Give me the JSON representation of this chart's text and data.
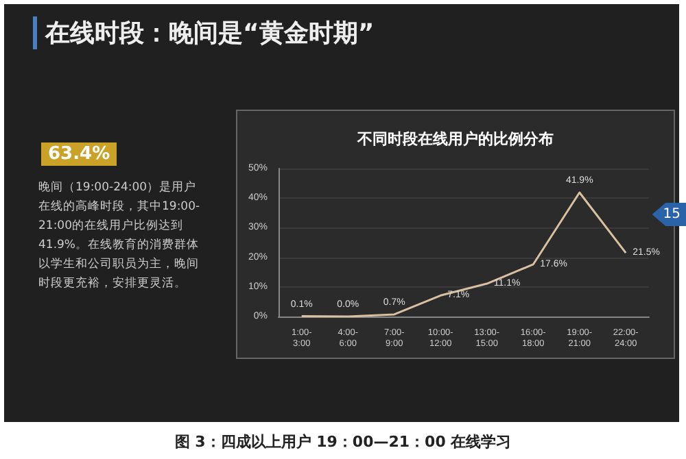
{
  "chart_data": {
    "type": "line",
    "title": "不同时段在线用户的比例分布",
    "categories": [
      "1:00-3:00",
      "4:00-6:00",
      "7:00-9:00",
      "10:00-12:00",
      "13:00-15:00",
      "16:00-18:00",
      "19:00-21:00",
      "22:00-24:00"
    ],
    "values": [
      0.1,
      0.0,
      0.7,
      7.1,
      11.1,
      17.6,
      41.9,
      21.5
    ],
    "value_labels": [
      "0.1%",
      "0.0%",
      "0.7%",
      "7.1%",
      "11.1%",
      "17.6%",
      "41.9%",
      "21.5%"
    ],
    "color": "#d8c0a0",
    "ylim": [
      0,
      50
    ],
    "yticks": [
      {
        "value": 0,
        "label": "0%"
      },
      {
        "value": 10,
        "label": "10%"
      },
      {
        "value": 20,
        "label": "20%"
      },
      {
        "value": 30,
        "label": "30%"
      },
      {
        "value": 40,
        "label": "40%"
      },
      {
        "value": 50,
        "label": "50%"
      }
    ],
    "grid": "y",
    "marker": "none",
    "annotations": [
      "在线时段：晚间是“黄金时期”",
      "63.4%",
      "晚间（19:00-24:00）是用户在线的高峰时段，其中19:00-21:00的在线用户比例达到41.9%。在线教育的消费群体以学生和公司职员为主，晚间时段更充裕，安排更灵活。",
      "15",
      "图 3：四成以上用户 19：00—21：00 在线学习"
    ]
  }
}
